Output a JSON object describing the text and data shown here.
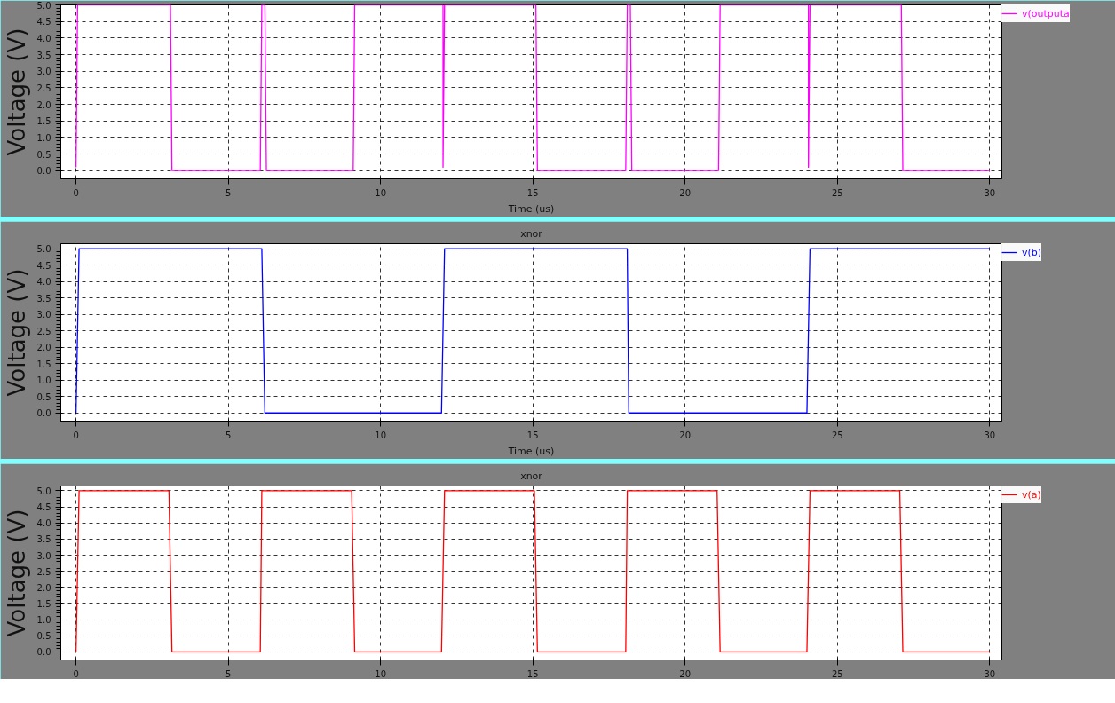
{
  "chart_data": [
    {
      "type": "line",
      "xlabel": "Time (us)",
      "ylabel": "Voltage (V)",
      "xlim": [
        -0.5,
        30.4
      ],
      "ylim": [
        -0.25,
        5.0
      ],
      "xticks": [
        0,
        5,
        10,
        15,
        20,
        25,
        30
      ],
      "yticks": [
        {
          "value": 0,
          "label": "0.0"
        },
        {
          "value": 0.5,
          "label": "0.5"
        },
        {
          "value": 1,
          "label": "1.0"
        },
        {
          "value": 1.5,
          "label": "1.5"
        },
        {
          "value": 2,
          "label": "2.0"
        },
        {
          "value": 2.5,
          "label": "2.5"
        },
        {
          "value": 3,
          "label": "3.0"
        },
        {
          "value": 3.5,
          "label": "3.5"
        },
        {
          "value": 4,
          "label": "4.0"
        },
        {
          "value": 4.5,
          "label": "4.5"
        },
        {
          "value": 5,
          "label": "5.0"
        }
      ],
      "grid": true,
      "legend": "right",
      "marker": "none",
      "line_style": "solid",
      "series": [
        {
          "name": "v(outputa",
          "color": "#ff00ff",
          "x": [
            0,
            0.05,
            0.1,
            3.1,
            3.15,
            6.05,
            6.1,
            6.2,
            6.25,
            9.1,
            9.15,
            12.05,
            12.05,
            12.1,
            15.1,
            15.15,
            18.05,
            18.1,
            18.2,
            18.25,
            21.1,
            21.15,
            24.05,
            24.05,
            24.1,
            27.1,
            27.15,
            30
          ],
          "values": [
            0.1,
            5,
            5,
            5,
            0,
            0,
            5,
            5,
            0,
            0,
            5,
            5,
            0.1,
            5,
            5,
            0,
            0,
            5,
            5,
            0,
            0,
            5,
            5,
            0.1,
            5,
            5,
            0,
            0
          ]
        }
      ]
    },
    {
      "type": "line",
      "title": "xnor",
      "xlabel": "Time (us)",
      "ylabel": "Voltage (V)",
      "xlim": [
        -0.5,
        30.4
      ],
      "ylim": [
        -0.25,
        5.15
      ],
      "xticks": [
        0,
        5,
        10,
        15,
        20,
        25,
        30
      ],
      "yticks": [
        {
          "value": 0,
          "label": "0.0"
        },
        {
          "value": 0.5,
          "label": "0.5"
        },
        {
          "value": 1,
          "label": "1.0"
        },
        {
          "value": 1.5,
          "label": "1.5"
        },
        {
          "value": 2,
          "label": "2.0"
        },
        {
          "value": 2.5,
          "label": "2.5"
        },
        {
          "value": 3,
          "label": "3.0"
        },
        {
          "value": 3.5,
          "label": "3.5"
        },
        {
          "value": 4,
          "label": "4.0"
        },
        {
          "value": 4.5,
          "label": "4.5"
        },
        {
          "value": 5,
          "label": "5.0"
        }
      ],
      "grid": true,
      "legend": "right",
      "marker": "none",
      "line_style": "solid",
      "series": [
        {
          "name": "v(b)",
          "color": "#0000ff",
          "x": [
            0,
            0.1,
            6.1,
            6.2,
            12.0,
            12.1,
            18.1,
            18.15,
            24.0,
            24.1,
            30
          ],
          "values": [
            0,
            5,
            5,
            0,
            0,
            5,
            5,
            0,
            0,
            5,
            5
          ]
        }
      ]
    },
    {
      "type": "line",
      "title": "xnor",
      "ylabel": "Voltage (V)",
      "xlim": [
        -0.5,
        30.4
      ],
      "ylim": [
        -0.25,
        5.15
      ],
      "xticks": [
        0,
        5,
        10,
        15,
        20,
        25,
        30
      ],
      "yticks": [
        {
          "value": 0,
          "label": "0.0"
        },
        {
          "value": 0.5,
          "label": "0.5"
        },
        {
          "value": 1,
          "label": "1.0"
        },
        {
          "value": 1.5,
          "label": "1.5"
        },
        {
          "value": 2,
          "label": "2.0"
        },
        {
          "value": 2.5,
          "label": "2.5"
        },
        {
          "value": 3,
          "label": "3.0"
        },
        {
          "value": 3.5,
          "label": "3.5"
        },
        {
          "value": 4,
          "label": "4.0"
        },
        {
          "value": 4.5,
          "label": "4.5"
        },
        {
          "value": 5,
          "label": "5.0"
        }
      ],
      "grid": true,
      "legend": "right",
      "marker": "none",
      "line_style": "solid",
      "series": [
        {
          "name": "v(a)",
          "color": "#ff0000",
          "x": [
            0,
            0.1,
            3.05,
            3.15,
            6.05,
            6.1,
            9.05,
            9.15,
            12.0,
            12.1,
            15.05,
            15.15,
            18.05,
            18.1,
            21.05,
            21.15,
            24.0,
            24.1,
            27.05,
            27.15,
            30
          ],
          "values": [
            0,
            5,
            5,
            0,
            0,
            5,
            5,
            0,
            0,
            5,
            5,
            0,
            0,
            5,
            5,
            0,
            0,
            5,
            5,
            0,
            0
          ]
        }
      ]
    }
  ]
}
